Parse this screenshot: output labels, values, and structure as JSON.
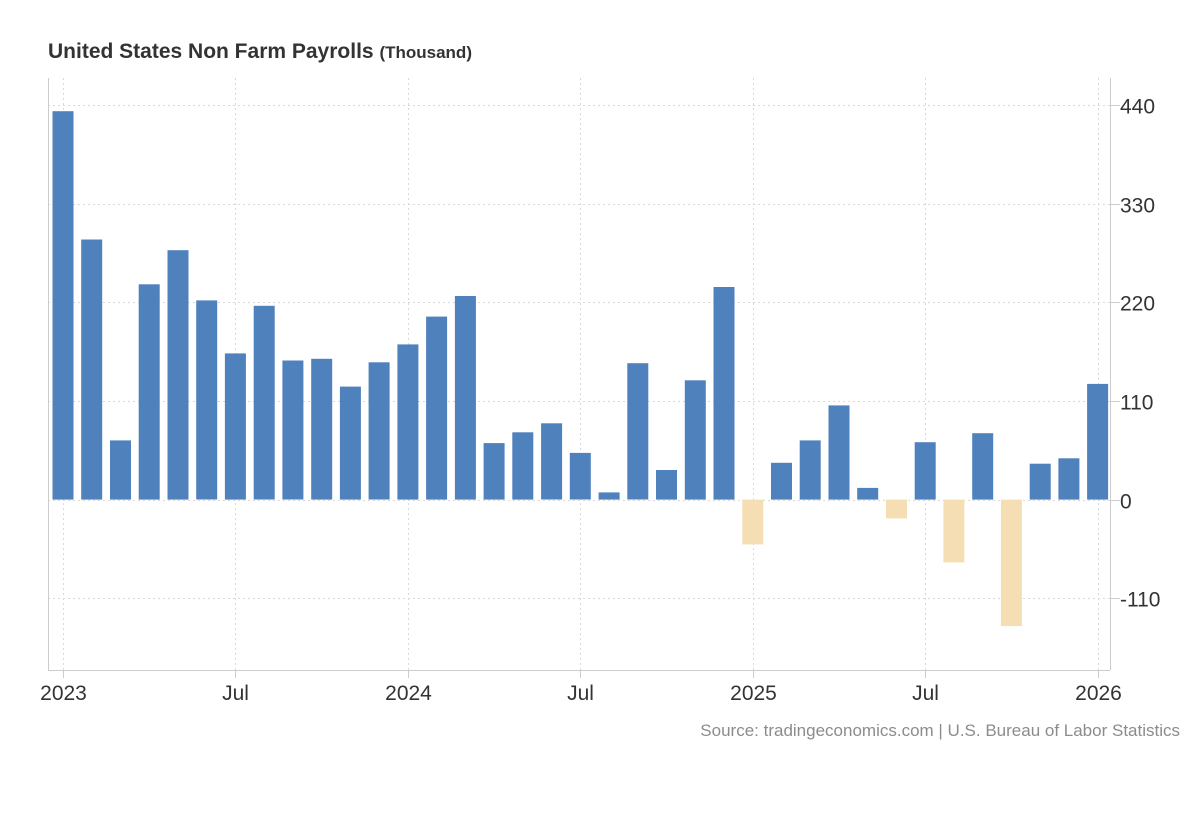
{
  "header": {
    "title": "United States Non Farm Payrolls",
    "unit": "(Thousand)"
  },
  "footer": {
    "source": "Source: tradingeconomics.com | U.S. Bureau of Labor Statistics"
  },
  "colors": {
    "positive": "#4f81bd",
    "negative": "#f5deb3",
    "grid": "#d9d9d9",
    "axis": "#cccccc",
    "text": "#333333",
    "source": "#8c8c8c"
  },
  "chart_data": {
    "type": "bar",
    "title": "United States Non Farm Payrolls (Thousand)",
    "xlabel": "",
    "ylabel": "",
    "ylim": [
      -190,
      470
    ],
    "yticks": [
      -110,
      0,
      110,
      220,
      330,
      440
    ],
    "grid": true,
    "legend": "none",
    "categories": [
      "2023-01",
      "2023-02",
      "2023-03",
      "2023-04",
      "2023-05",
      "2023-06",
      "2023-07",
      "2023-08",
      "2023-09",
      "2023-10",
      "2023-11",
      "2023-12",
      "2024-01",
      "2024-02",
      "2024-03",
      "2024-04",
      "2024-05",
      "2024-06",
      "2024-07",
      "2024-08",
      "2024-09",
      "2024-10",
      "2024-11",
      "2024-12",
      "2025-01",
      "2025-02",
      "2025-03",
      "2025-04",
      "2025-05",
      "2025-06",
      "2025-07",
      "2025-08",
      "2025-09",
      "2025-10",
      "2025-11",
      "2025-12",
      "2026-01"
    ],
    "values": [
      433,
      290,
      66,
      240,
      278,
      222,
      163,
      216,
      155,
      157,
      126,
      153,
      173,
      204,
      227,
      63,
      75,
      85,
      52,
      8,
      152,
      33,
      133,
      237,
      -50,
      41,
      66,
      105,
      13,
      -21,
      64,
      -70,
      74,
      -141,
      40,
      46,
      129
    ],
    "xtick_labels": [
      {
        "label": "2023",
        "category": "2023-01"
      },
      {
        "label": "Jul",
        "category": "2023-07"
      },
      {
        "label": "2024",
        "category": "2024-01"
      },
      {
        "label": "Jul",
        "category": "2024-07"
      },
      {
        "label": "2025",
        "category": "2025-01"
      },
      {
        "label": "Jul",
        "category": "2025-07"
      },
      {
        "label": "2026",
        "category": "2026-01"
      }
    ]
  }
}
